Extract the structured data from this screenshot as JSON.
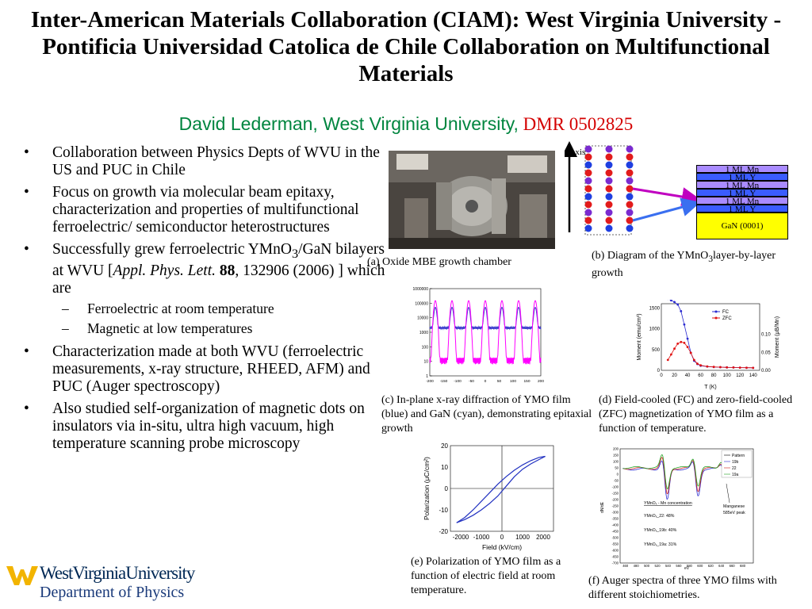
{
  "title": "Inter-American Materials Collaboration (CIAM): West Virginia University - Pontificia Universidad Catolica de Chile Collaboration on Multifunctional Materials",
  "author": {
    "name": "David Lederman, West Virginia University,",
    "grant": "DMR 0502825"
  },
  "bullets": {
    "b1": "Collaboration between Physics Depts of WVU in the US and PUC in Chile",
    "b2": "Focus on growth via molecular beam epitaxy, characterization and properties of multifunctional ferroelectric/ semiconductor heterostructures",
    "b3": {
      "pre": "Successfully grew ferroelectric YMnO",
      "sub3": "3",
      "mid": "/GaN bilayers at WVU [",
      "journal": "Appl. Phys. Lett.",
      "vol": "88",
      "post": ", 132906 (2006) ] which are",
      "subs": [
        "Ferroelectric at room temperature",
        "Magnetic at low temperatures"
      ]
    },
    "b4": "Characterization made at both WVU (ferroelectric measurements, x-ray structure, RHEED, AFM) and PUC (Auger spectroscopy)",
    "b5": "Also studied self-organization of magnetic dots on insulators via in-situ, ultra high vacuum, high temperature scanning probe microscopy"
  },
  "captions": {
    "a": "(a)  Oxide MBE growth chamber",
    "b_pre": "(b)  Diagram of the YMnO",
    "b_sub": "3",
    "b_post": "layer-by-layer growth",
    "c": "(c)  In-plane x-ray diffraction of YMO film (blue) and GaN (cyan), demonstrating epitaxial growth",
    "d": "(d)  Field-cooled (FC) and zero-field-cooled (ZFC) magnetization of YMO film as a function of temperature.",
    "e": "(e)  Polarization of YMO film as a function of electric field at room temperature.",
    "f": "(f)  Auger spectra of three YMO films with different stoichiometries."
  },
  "diagram_b": {
    "axis_label": "c-axis",
    "layers": [
      "1 ML Mn",
      "1 ML Y",
      "1 ML Mn",
      "1 ML Y",
      "1 ML Mn",
      "1 ML Y"
    ],
    "substrate": "GaN (0001)",
    "colors": {
      "y_atom": "#e21b1b",
      "mn_atom": "#1f3fe0",
      "o_atom": "#7a2bd0",
      "layer_mn": "#a98bff",
      "layer_y": "#3a5cff",
      "substrate": "#ffff00",
      "arrow1": "#c000c0",
      "arrow2": "#3a6ff0"
    }
  },
  "chart_data": [
    {
      "type": "line",
      "id": "c",
      "x": [
        -200,
        -180,
        -160,
        -140,
        -120,
        -100,
        -80,
        -60,
        -40,
        -20,
        0,
        20,
        40,
        60,
        80,
        100,
        120,
        140,
        160,
        180
      ],
      "ylim_log": [
        1,
        1000000
      ],
      "yticks": [
        "1000000",
        "100000",
        "10000",
        "1000",
        "100",
        "10",
        "1"
      ],
      "xticks": [
        "-200",
        "-150",
        "-100",
        "-50",
        "0",
        "50",
        "100",
        "150",
        "200"
      ],
      "peaks": [
        -180,
        -120,
        -60,
        0,
        60,
        120,
        180
      ],
      "series": [
        {
          "color": "#3a3acc",
          "base": 2000,
          "peak": 50000
        },
        {
          "color": "#ff00ff",
          "base": 12,
          "peak": 150000
        }
      ]
    },
    {
      "type": "line",
      "id": "d",
      "xlabel": "T (K)",
      "ylabel": "Moment (emu/cm³)",
      "y2label": "Moment (μB/Mn)",
      "xlim": [
        0,
        150
      ],
      "ylim": [
        0,
        1600
      ],
      "xticks": [
        "0",
        "20",
        "40",
        "60",
        "80",
        "100",
        "120",
        "140"
      ],
      "yticks": [
        "0",
        "500",
        "1000",
        "1500"
      ],
      "y2ticks": [
        "0.00",
        "0.05",
        "0.10"
      ],
      "legend": [
        "FC",
        "ZFC"
      ],
      "series": [
        {
          "name": "FC",
          "color": "#2a2ad0",
          "x": [
            10,
            15,
            20,
            25,
            30,
            35,
            40,
            45,
            50,
            55,
            60,
            70,
            80,
            90,
            100,
            110,
            120,
            130,
            140
          ],
          "y": [
            1720,
            1680,
            1640,
            1580,
            1420,
            1100,
            760,
            420,
            230,
            150,
            110,
            90,
            80,
            75,
            70,
            68,
            65,
            62,
            60
          ]
        },
        {
          "name": "ZFC",
          "color": "#e01010",
          "x": [
            10,
            15,
            20,
            25,
            30,
            35,
            40,
            45,
            50,
            55,
            60,
            70,
            80,
            90,
            100,
            110,
            120,
            130,
            140
          ],
          "y": [
            250,
            380,
            520,
            640,
            680,
            660,
            560,
            420,
            250,
            160,
            120,
            92,
            82,
            76,
            71,
            68,
            65,
            62,
            60
          ]
        }
      ]
    },
    {
      "type": "line",
      "id": "e",
      "xlabel": "Field (kV/cm)",
      "ylabel": "Polarization (μC/cm²)",
      "xlim": [
        -2500,
        2500
      ],
      "ylim": [
        -20,
        20
      ],
      "xticks": [
        "-2000",
        "-1000",
        "0",
        "1000",
        "2000"
      ],
      "yticks": [
        "20",
        "10",
        "0",
        "-10",
        "-20"
      ],
      "series": [
        {
          "name": "up",
          "color": "#2030c0",
          "x": [
            -2200,
            -1800,
            -1400,
            -1000,
            -600,
            -200,
            200,
            600,
            1000,
            1400,
            1800,
            2100
          ],
          "y": [
            -16,
            -14.5,
            -12.5,
            -10,
            -7,
            -3.5,
            1,
            5.5,
            9,
            11.5,
            13.5,
            15
          ]
        },
        {
          "name": "down",
          "color": "#2030c0",
          "x": [
            2100,
            1800,
            1400,
            1000,
            600,
            200,
            -200,
            -600,
            -1000,
            -1400,
            -1800,
            -2200
          ],
          "y": [
            15,
            14.5,
            13,
            11,
            8.5,
            5.5,
            2,
            -2,
            -6,
            -10,
            -13.5,
            -16
          ]
        }
      ]
    },
    {
      "type": "line",
      "id": "f",
      "xlabel": "eV",
      "ylabel": "dN/dE",
      "xlim": [
        450,
        700
      ],
      "ylim": [
        -700,
        200
      ],
      "xticks": [
        "460",
        "480",
        "500",
        "520",
        "540",
        "560",
        "580",
        "600",
        "620",
        "640",
        "660",
        "680"
      ],
      "yticks": [
        "200",
        "150",
        "100",
        "50",
        "0",
        "-50",
        "-100",
        "-150",
        "-200",
        "-250",
        "-300",
        "-350",
        "-400",
        "-450",
        "-500",
        "-550",
        "-600",
        "-650",
        "-700"
      ],
      "legend": [
        "Pattern",
        "19b",
        "22",
        "19a"
      ],
      "annotations": [
        "YMnOₓ - Mn concentration",
        "YMnOₓ_22: 48%",
        "YMnOₓ_19b: 40%",
        "YMnOₓ_19a: 31%",
        "Manganese",
        "585eV peak"
      ],
      "series": [
        {
          "name": "19b",
          "color": "#2a2ad0"
        },
        {
          "name": "22",
          "color": "#d02020"
        },
        {
          "name": "19a",
          "color": "#20a020"
        }
      ]
    }
  ]
}
